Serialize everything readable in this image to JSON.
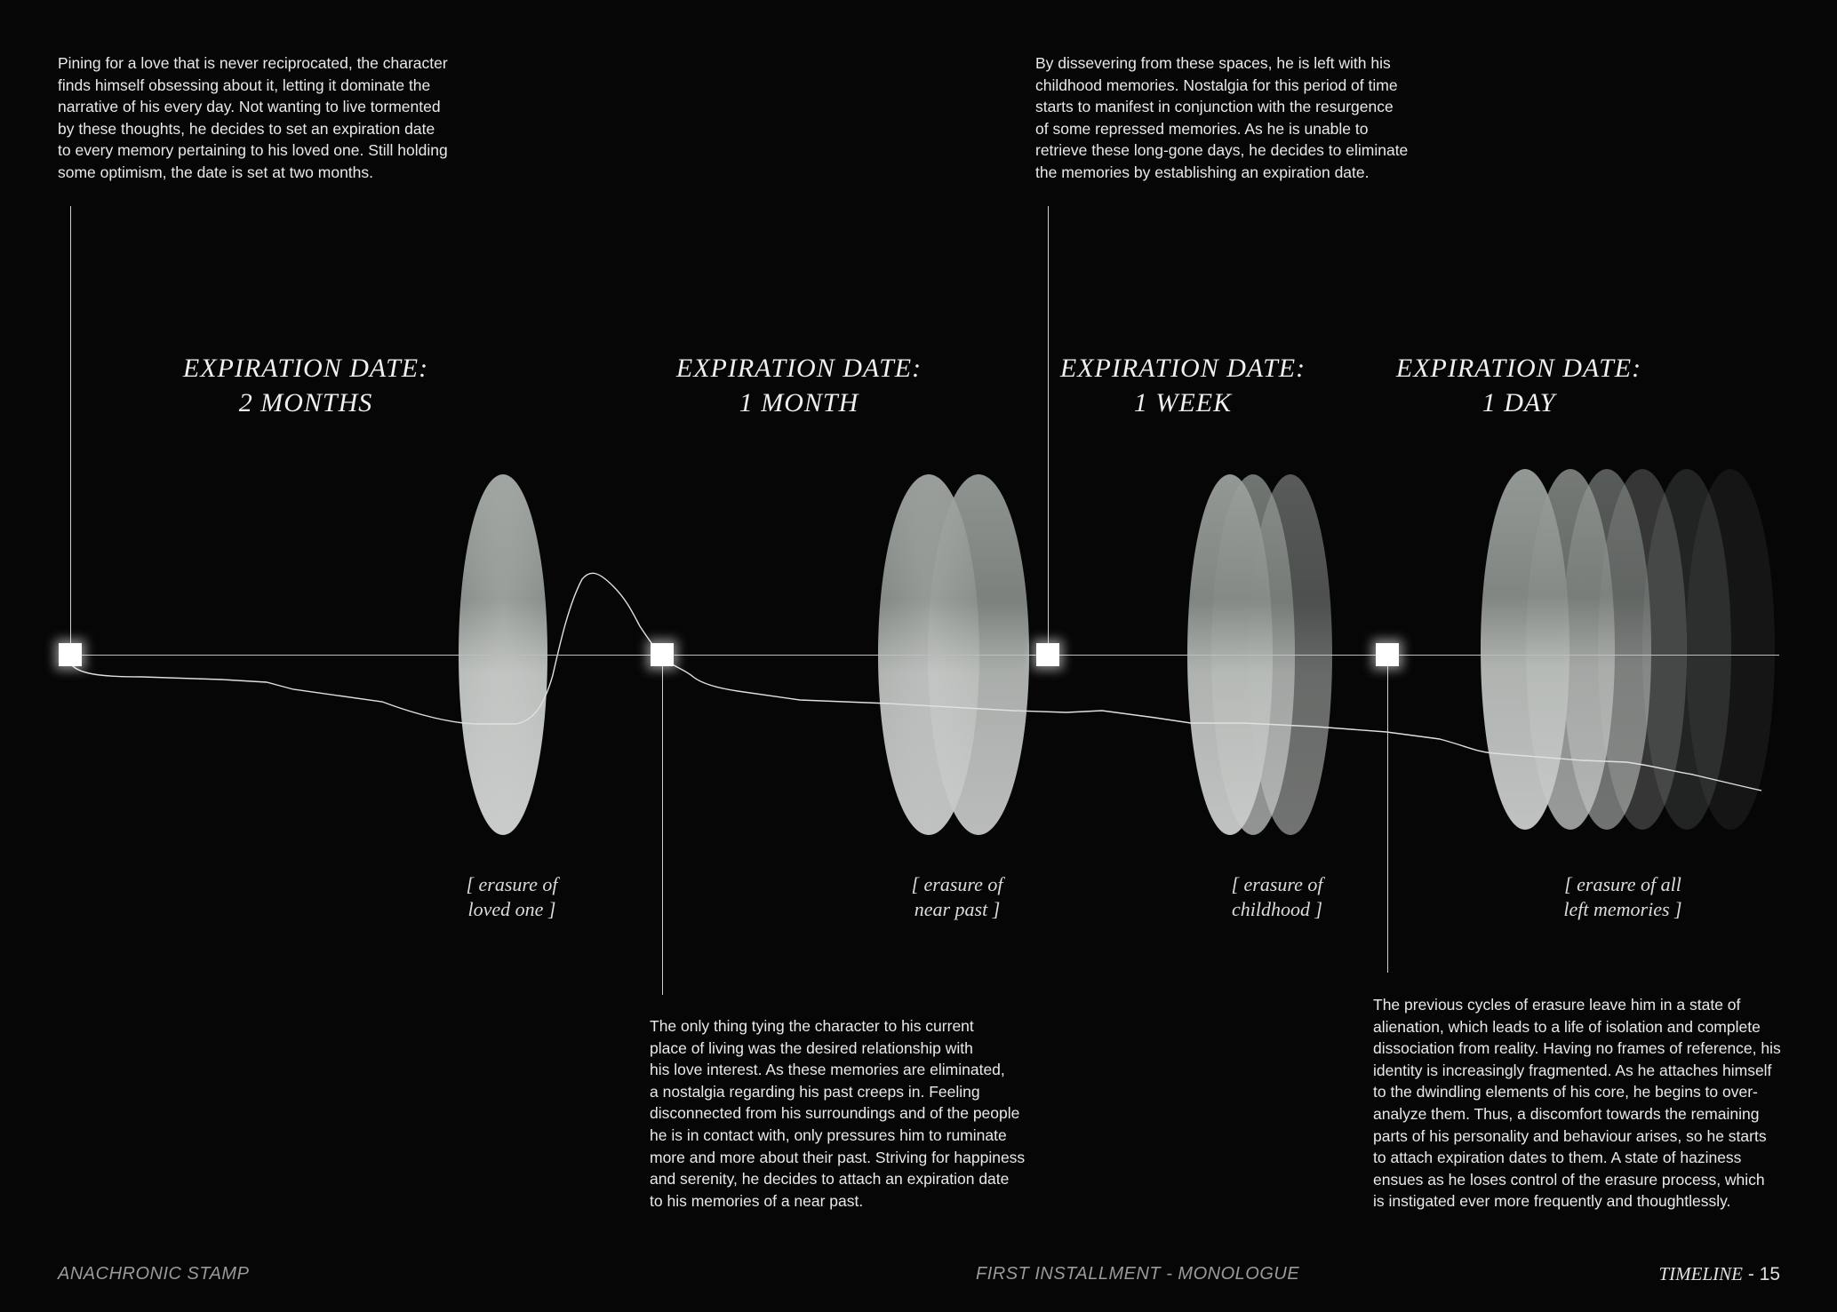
{
  "paragraphs": {
    "p1": "Pining for a love that is never reciprocated, the character\nfinds himself obsessing about it, letting it dominate the\nnarrative of his every day. Not wanting to live tormented\nby these thoughts, he decides to set an expiration date\nto every memory pertaining to his loved one. Still holding\nsome optimism, the date is set at two months.",
    "p2": "By dissevering from these spaces, he is left with his\nchildhood memories. Nostalgia for this period of time\nstarts to manifest in conjunction with the resurgence\nof some repressed memories. As he is unable to\nretrieve these long-gone days, he decides to eliminate\nthe memories by establishing an expiration date.",
    "p3": "The only thing tying the character to his current\nplace of living was the desired relationship with\nhis love interest. As these memories are eliminated,\na nostalgia regarding his past creeps in. Feeling\ndisconnected from his surroundings and of the people\nhe is in contact with, only pressures him to ruminate\nmore and more about their past. Striving for happiness\nand serenity, he decides to attach an expiration date\nto his memories of a near past.",
    "p4": "The previous cycles of erasure leave him in a state of\nalienation, which leads to a life of isolation and complete\ndissociation from reality. Having no frames of reference, his\nidentity is increasingly fragmented. As he attaches himself\nto the dwindling elements of his core, he begins to over-\nanalyze them. Thus, a discomfort towards the remaining\nparts of his personality and behaviour arises, so he starts\nto attach expiration dates to them. A state of haziness\nensues as he loses control of the erasure process, which\nis instigated ever more frequently and thoughtlessly."
  },
  "stages": [
    {
      "title": "EXPIRATION DATE:\n2 MONTHS",
      "caption": "[ erasure  of\nloved one ]",
      "ellipse_count": 1
    },
    {
      "title": "EXPIRATION DATE:\n1 MONTH",
      "caption": "[ erasure of\nnear past ]",
      "ellipse_count": 2
    },
    {
      "title": "EXPIRATION DATE:\n1 WEEK",
      "caption": "[ erasure of\nchildhood ]",
      "ellipse_count": 3
    },
    {
      "title": "EXPIRATION DATE:\n1 DAY",
      "caption": "[ erasure of all\nleft memories ]",
      "ellipse_count": 6
    }
  ],
  "footer": {
    "left": "ANACHRONIC STAMP",
    "center": "FIRST INSTALLMENT - MONOLOGUE",
    "section": "TIMELINE",
    "page": "- 15"
  },
  "colors": {
    "background": "#060606",
    "text": "#e9e9e9",
    "marker": "#ffffff",
    "line": "#bdbdbd"
  }
}
